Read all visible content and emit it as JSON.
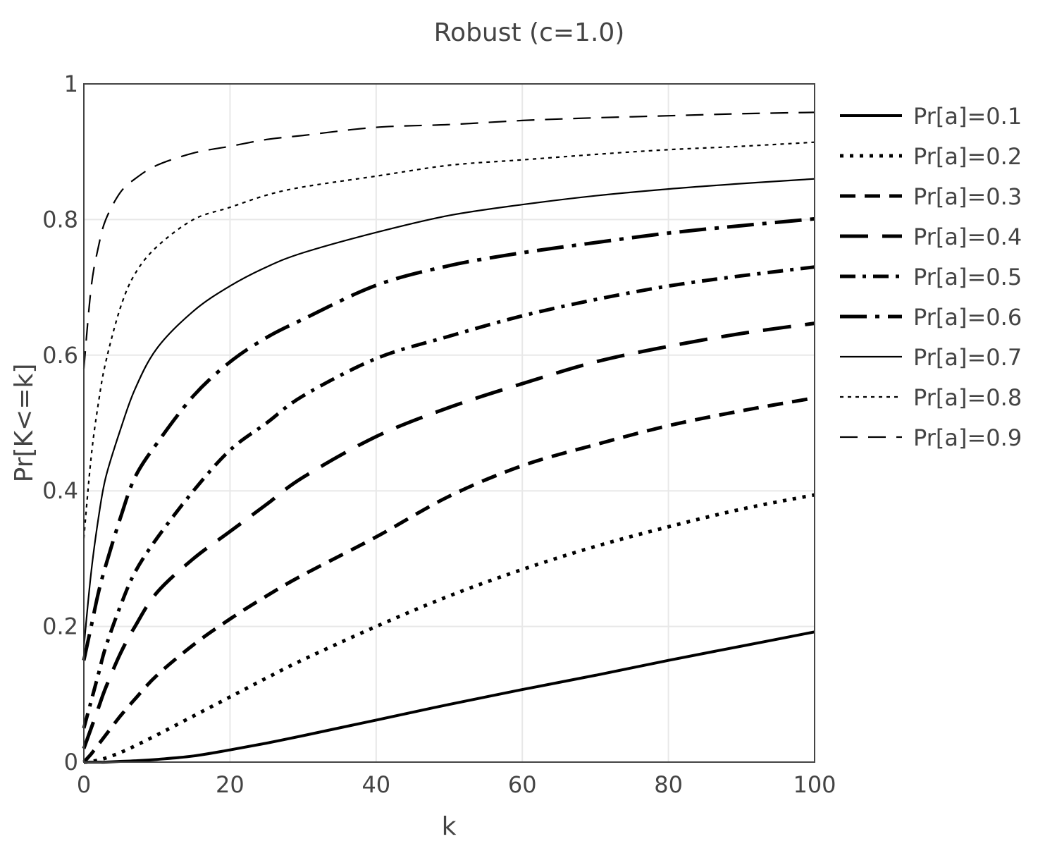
{
  "chart_data": {
    "type": "line",
    "title": "Robust (c=1.0)",
    "xlabel": "k",
    "ylabel": "Pr[K<=k]",
    "xlim": [
      0,
      100
    ],
    "ylim": [
      0,
      1
    ],
    "grid": true,
    "legend_position": "right",
    "x_ticks": [
      "0",
      "20",
      "40",
      "60",
      "80",
      "100"
    ],
    "y_ticks": [
      "0",
      "0.2",
      "0.4",
      "0.6",
      "0.8",
      "1"
    ],
    "x": [
      0,
      1,
      2,
      3,
      5,
      7,
      10,
      15,
      20,
      25,
      30,
      40,
      50,
      60,
      70,
      80,
      90,
      100
    ],
    "series": [
      {
        "name": "Pr[a]=0.1",
        "style": "solid-thick",
        "values": [
          0.0,
          0.0,
          0.0,
          0.0,
          0.001,
          0.002,
          0.004,
          0.009,
          0.018,
          0.028,
          0.039,
          0.062,
          0.085,
          0.107,
          0.128,
          0.15,
          0.171,
          0.192
        ]
      },
      {
        "name": "Pr[a]=0.2",
        "style": "dot-thick",
        "values": [
          0.0,
          0.001,
          0.003,
          0.006,
          0.014,
          0.024,
          0.04,
          0.068,
          0.096,
          0.124,
          0.151,
          0.2,
          0.245,
          0.284,
          0.318,
          0.347,
          0.373,
          0.394
        ]
      },
      {
        "name": "Pr[a]=0.3",
        "style": "dash-thick",
        "values": [
          0.0,
          0.012,
          0.026,
          0.04,
          0.068,
          0.093,
          0.128,
          0.173,
          0.211,
          0.245,
          0.276,
          0.332,
          0.392,
          0.437,
          0.468,
          0.496,
          0.518,
          0.537
        ]
      },
      {
        "name": "Pr[a]=0.4",
        "style": "longdash-thick",
        "values": [
          0.02,
          0.05,
          0.08,
          0.11,
          0.16,
          0.2,
          0.25,
          0.3,
          0.34,
          0.38,
          0.42,
          0.48,
          0.523,
          0.558,
          0.59,
          0.613,
          0.632,
          0.647
        ]
      },
      {
        "name": "Pr[a]=0.5",
        "style": "dashdot-thick",
        "values": [
          0.05,
          0.09,
          0.13,
          0.17,
          0.23,
          0.28,
          0.33,
          0.4,
          0.46,
          0.5,
          0.54,
          0.595,
          0.628,
          0.658,
          0.682,
          0.702,
          0.717,
          0.73
        ]
      },
      {
        "name": "Pr[a]=0.6",
        "style": "longdashdot-thick",
        "values": [
          0.15,
          0.2,
          0.25,
          0.29,
          0.36,
          0.42,
          0.47,
          0.54,
          0.59,
          0.626,
          0.653,
          0.703,
          0.732,
          0.751,
          0.766,
          0.78,
          0.791,
          0.801
        ]
      },
      {
        "name": "Pr[a]=0.7",
        "style": "solid-thin",
        "values": [
          0.17,
          0.28,
          0.36,
          0.42,
          0.49,
          0.55,
          0.61,
          0.665,
          0.702,
          0.73,
          0.751,
          0.781,
          0.806,
          0.822,
          0.835,
          0.845,
          0.853,
          0.86
        ]
      },
      {
        "name": "Pr[a]=0.8",
        "style": "dot-thin",
        "values": [
          0.33,
          0.45,
          0.53,
          0.59,
          0.67,
          0.72,
          0.76,
          0.8,
          0.818,
          0.836,
          0.848,
          0.864,
          0.88,
          0.888,
          0.896,
          0.903,
          0.908,
          0.914
        ]
      },
      {
        "name": "Pr[a]=0.9",
        "style": "dash-thin",
        "values": [
          0.58,
          0.7,
          0.76,
          0.8,
          0.84,
          0.86,
          0.88,
          0.898,
          0.908,
          0.918,
          0.924,
          0.936,
          0.94,
          0.946,
          0.95,
          0.953,
          0.956,
          0.958
        ]
      }
    ]
  }
}
